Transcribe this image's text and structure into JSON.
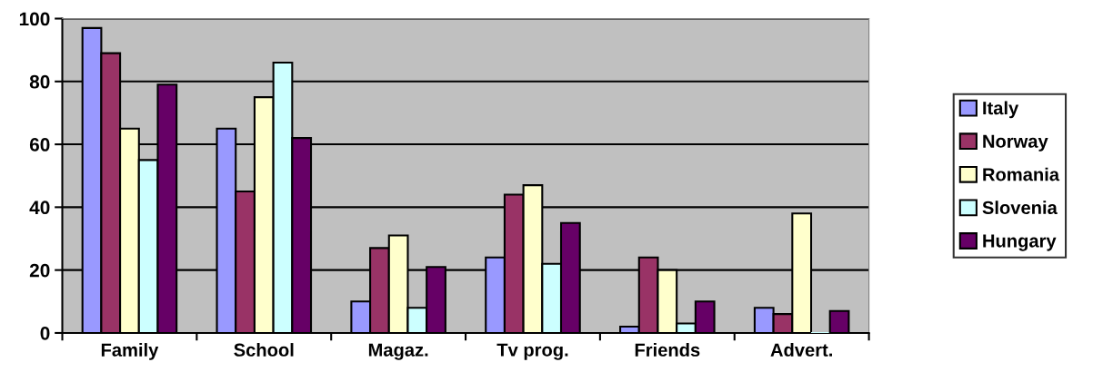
{
  "chart_data": {
    "type": "bar",
    "categories": [
      "Family",
      "School",
      "Magaz.",
      "Tv prog.",
      "Friends",
      "Advert."
    ],
    "series": [
      {
        "name": "Italy",
        "color": "#9999ff",
        "values": [
          97,
          65,
          10,
          24,
          2,
          8
        ]
      },
      {
        "name": "Norway",
        "color": "#993366",
        "values": [
          89,
          45,
          27,
          44,
          24,
          6
        ]
      },
      {
        "name": "Romania",
        "color": "#ffffcc",
        "values": [
          65,
          75,
          31,
          47,
          20,
          38
        ]
      },
      {
        "name": "Slovenia",
        "color": "#ccffff",
        "values": [
          55,
          86,
          8,
          22,
          3,
          0
        ]
      },
      {
        "name": "Hungary",
        "color": "#660066",
        "values": [
          79,
          62,
          21,
          35,
          10,
          7
        ]
      }
    ],
    "ylim": [
      0,
      100
    ],
    "yticks": [
      0,
      20,
      40,
      60,
      80,
      100
    ],
    "grid": "y",
    "legend": "right"
  }
}
